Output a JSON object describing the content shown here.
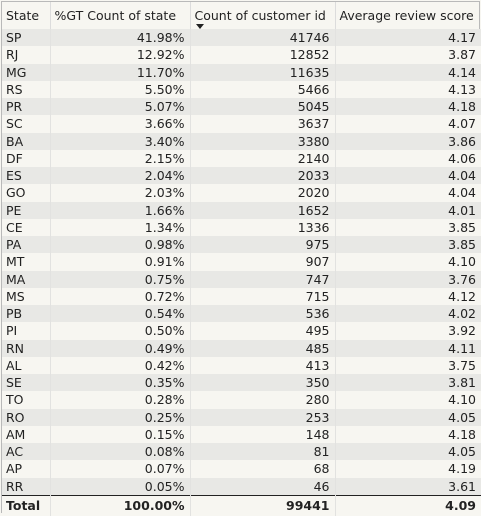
{
  "table": {
    "columns": [
      "State",
      "%GT Count of state",
      "Count of customer id",
      "Average review score"
    ],
    "sort_icon": "sort-descending-caret",
    "rows": [
      [
        "SP",
        "41.98%",
        "41746",
        "4.17"
      ],
      [
        "RJ",
        "12.92%",
        "12852",
        "3.87"
      ],
      [
        "MG",
        "11.70%",
        "11635",
        "4.14"
      ],
      [
        "RS",
        "5.50%",
        "5466",
        "4.13"
      ],
      [
        "PR",
        "5.07%",
        "5045",
        "4.18"
      ],
      [
        "SC",
        "3.66%",
        "3637",
        "4.07"
      ],
      [
        "BA",
        "3.40%",
        "3380",
        "3.86"
      ],
      [
        "DF",
        "2.15%",
        "2140",
        "4.06"
      ],
      [
        "ES",
        "2.04%",
        "2033",
        "4.04"
      ],
      [
        "GO",
        "2.03%",
        "2020",
        "4.04"
      ],
      [
        "PE",
        "1.66%",
        "1652",
        "4.01"
      ],
      [
        "CE",
        "1.34%",
        "1336",
        "3.85"
      ],
      [
        "PA",
        "0.98%",
        "975",
        "3.85"
      ],
      [
        "MT",
        "0.91%",
        "907",
        "4.10"
      ],
      [
        "MA",
        "0.75%",
        "747",
        "3.76"
      ],
      [
        "MS",
        "0.72%",
        "715",
        "4.12"
      ],
      [
        "PB",
        "0.54%",
        "536",
        "4.02"
      ],
      [
        "PI",
        "0.50%",
        "495",
        "3.92"
      ],
      [
        "RN",
        "0.49%",
        "485",
        "4.11"
      ],
      [
        "AL",
        "0.42%",
        "413",
        "3.75"
      ],
      [
        "SE",
        "0.35%",
        "350",
        "3.81"
      ],
      [
        "TO",
        "0.28%",
        "280",
        "4.10"
      ],
      [
        "RO",
        "0.25%",
        "253",
        "4.05"
      ],
      [
        "AM",
        "0.15%",
        "148",
        "4.18"
      ],
      [
        "AC",
        "0.08%",
        "81",
        "4.05"
      ],
      [
        "AP",
        "0.07%",
        "68",
        "4.19"
      ],
      [
        "RR",
        "0.05%",
        "46",
        "3.61"
      ]
    ],
    "total": [
      "Total",
      "100.00%",
      "99441",
      "4.09"
    ]
  }
}
